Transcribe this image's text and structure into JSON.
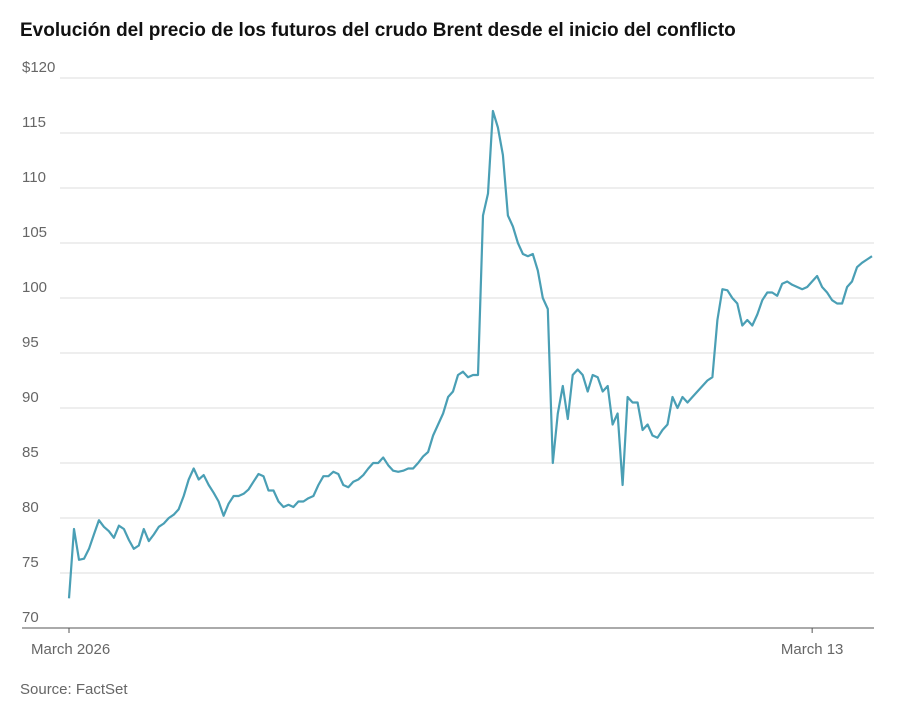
{
  "chart_data": {
    "type": "line",
    "title": "Evolución del precio de los futuros del crudo Brent desde el inicio del conflicto",
    "source": "Source: FactSet",
    "color": "#4a9fb5",
    "values": [
      72.7,
      79.0,
      76.2,
      76.3,
      77.2,
      78.5,
      79.8,
      79.2,
      78.8,
      78.2,
      79.3,
      79.0,
      78.0,
      77.2,
      77.5,
      79.0,
      77.9,
      78.5,
      79.2,
      79.5,
      80.0,
      80.3,
      80.8,
      82.0,
      83.5,
      84.5,
      83.5,
      83.9,
      83.0,
      82.3,
      81.5,
      80.2,
      81.3,
      82.0,
      82.0,
      82.2,
      82.6,
      83.3,
      84.0,
      83.8,
      82.5,
      82.5,
      81.5,
      81.0,
      81.2,
      81.0,
      81.5,
      81.5,
      81.8,
      82.0,
      83.0,
      83.8,
      83.8,
      84.2,
      84.0,
      83.0,
      82.8,
      83.3,
      83.5,
      83.9,
      84.5,
      85.0,
      85.0,
      85.5,
      84.8,
      84.3,
      84.2,
      84.3,
      84.5,
      84.5,
      85.0,
      85.6,
      86.0,
      87.5,
      88.5,
      89.5,
      91.0,
      91.5,
      93.0,
      93.3,
      92.8,
      93.0,
      93.0,
      107.5,
      109.5,
      117.0,
      115.5,
      113.0,
      107.5,
      106.5,
      105.0,
      104.0,
      103.8,
      104.0,
      102.5,
      100.0,
      99.0,
      85.0,
      89.5,
      92.0,
      89.0,
      93.0,
      93.5,
      93.0,
      91.5,
      93.0,
      92.8,
      91.5,
      92.0,
      88.5,
      89.5,
      83.0,
      91.0,
      90.5,
      90.5,
      88.0,
      88.5,
      87.5,
      87.3,
      88.0,
      88.5,
      91.0,
      90.0,
      91.0,
      90.5,
      91.0,
      91.5,
      92.0,
      92.5,
      92.8,
      98.0,
      100.8,
      100.7,
      100.0,
      99.5,
      97.5,
      98.0,
      97.5,
      98.5,
      99.8,
      100.5,
      100.5,
      100.2,
      101.3,
      101.5,
      101.2,
      101.0,
      100.8,
      101.0,
      101.5,
      102.0,
      101.0,
      100.5,
      99.8,
      99.5,
      99.5,
      101.0,
      101.5,
      102.8,
      103.2,
      103.5,
      103.8
    ],
    "xlim": [
      0,
      161
    ],
    "xticks": [
      {
        "value": 0,
        "label": "March 2026"
      },
      {
        "value": 149,
        "label": "March 13"
      }
    ],
    "ylim": [
      70,
      120
    ],
    "yticks": [
      70,
      75,
      80,
      85,
      90,
      95,
      100,
      105,
      110,
      115,
      {
        "value": 120,
        "label": "$120"
      }
    ],
    "grid": true
  }
}
